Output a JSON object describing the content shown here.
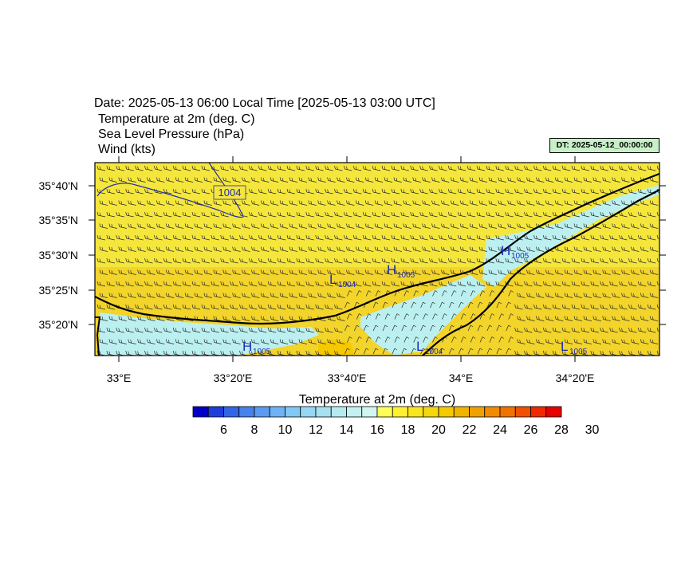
{
  "header": {
    "title": "Date: 2025-05-13  06:00 Local Time [2025-05-13  03:00 UTC]",
    "fields": [
      "Temperature at 2m   (deg. C)",
      "Sea Level Pressure   (hPa)",
      "Wind   (kts)"
    ],
    "dt_label": "DT: 2025-05-12_00:00:00"
  },
  "map": {
    "lat_labels": [
      "35°40'N",
      "35°35'N",
      "35°30'N",
      "35°25'N",
      "35°20'N"
    ],
    "lon_labels": [
      "33°E",
      "33°20'E",
      "33°40'E",
      "34°E",
      "34°20'E"
    ],
    "isobar_label": "1004",
    "pressure_centers": [
      {
        "type": "L",
        "value": "1004"
      },
      {
        "type": "H",
        "value": "1005"
      },
      {
        "type": "H",
        "value": "1005"
      },
      {
        "type": "H",
        "value": "1005"
      },
      {
        "type": "L",
        "value": "1004"
      },
      {
        "type": "L",
        "value": "1005"
      }
    ]
  },
  "colorbar": {
    "title": "Temperature at 2m  (deg. C)",
    "tick_labels": [
      "6",
      "8",
      "10",
      "12",
      "14",
      "16",
      "18",
      "20",
      "22",
      "24",
      "26",
      "28",
      "30"
    ],
    "colors": [
      "#0000c8",
      "#1e3cdc",
      "#3264e6",
      "#4682eb",
      "#5a9bf0",
      "#6eb4f5",
      "#82c8f5",
      "#96d7f5",
      "#a5e1f0",
      "#b4ebf0",
      "#c3f0f0",
      "#d2f5f0",
      "#ffff5a",
      "#fff032",
      "#fae61e",
      "#f5d70f",
      "#f5c800",
      "#f0b400",
      "#f0a000",
      "#f08c00",
      "#f07300",
      "#f05000",
      "#f02800",
      "#e60000"
    ]
  },
  "colors": {
    "warm": "#f5e63c",
    "cool": "#bcf0f0",
    "coast": "#000000",
    "isobar": "#1e2eb4"
  }
}
